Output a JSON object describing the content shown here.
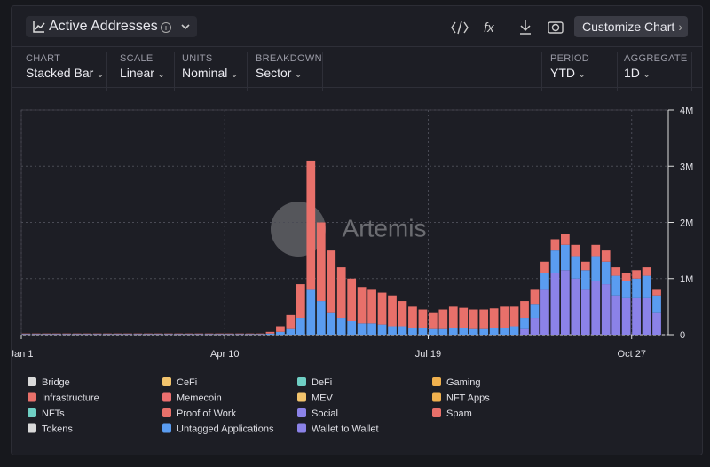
{
  "chart_data": {
    "type": "bar",
    "stacked": true,
    "title": "Active Addresses",
    "watermark": "Artemis",
    "categories": [
      "Jan 1",
      null,
      null,
      null,
      null,
      null,
      null,
      null,
      null,
      null,
      null,
      null,
      null,
      null,
      null,
      null,
      null,
      null,
      null,
      null,
      "Apr 10",
      null,
      null,
      null,
      null,
      null,
      null,
      null,
      null,
      null,
      null,
      null,
      null,
      null,
      null,
      null,
      null,
      null,
      null,
      null,
      "Jul 19",
      null,
      null,
      null,
      null,
      null,
      null,
      null,
      null,
      null,
      null,
      null,
      null,
      null,
      null,
      null,
      null,
      null,
      null,
      null,
      "Oct 27",
      null,
      null
    ],
    "ylim": [
      0,
      4
    ],
    "yticks": [
      0,
      {
        "value": 1,
        "label": "1M"
      },
      {
        "value": 2,
        "label": "2M"
      },
      {
        "value": 3,
        "label": "3M"
      },
      {
        "value": 4,
        "label": "4M"
      }
    ],
    "grid": true,
    "series": [
      {
        "name": "Bridge",
        "color": "#d9d9d9",
        "values": [
          0,
          0,
          0,
          0,
          0,
          0,
          0,
          0,
          0,
          0,
          0,
          0,
          0,
          0,
          0,
          0,
          0,
          0,
          0,
          0,
          0,
          0,
          0,
          0,
          0,
          0,
          0,
          0,
          0,
          0,
          0,
          0,
          0,
          0,
          0,
          0,
          0,
          0,
          0,
          0,
          0,
          0,
          0,
          0,
          0,
          0,
          0,
          0,
          0,
          0,
          0,
          0,
          0,
          0,
          0,
          0,
          0,
          0,
          0,
          0,
          0,
          0,
          0
        ]
      },
      {
        "name": "CeFi",
        "color": "#f2c46d",
        "values": [
          0,
          0,
          0,
          0,
          0,
          0,
          0,
          0,
          0,
          0,
          0,
          0,
          0,
          0,
          0,
          0,
          0,
          0,
          0,
          0,
          0,
          0,
          0,
          0,
          0,
          0,
          0,
          0,
          0,
          0,
          0,
          0,
          0,
          0,
          0,
          0,
          0,
          0,
          0,
          0,
          0,
          0,
          0,
          0,
          0,
          0,
          0,
          0,
          0,
          0,
          0,
          0,
          0,
          0,
          0,
          0,
          0,
          0,
          0,
          0,
          0,
          0,
          0
        ]
      },
      {
        "name": "DeFi",
        "color": "#6fcfc4",
        "values": [
          0,
          0,
          0,
          0,
          0,
          0,
          0,
          0,
          0,
          0,
          0,
          0,
          0,
          0,
          0,
          0,
          0,
          0,
          0,
          0,
          0,
          0,
          0,
          0,
          0,
          0,
          0,
          0,
          0,
          0,
          0,
          0,
          0,
          0,
          0,
          0,
          0,
          0,
          0,
          0,
          0,
          0,
          0,
          0,
          0,
          0,
          0,
          0,
          0,
          0,
          0,
          0,
          0,
          0,
          0,
          0,
          0,
          0,
          0,
          0,
          0,
          0,
          0
        ]
      },
      {
        "name": "Gaming",
        "color": "#f0b14e",
        "values": [
          0,
          0,
          0,
          0,
          0,
          0,
          0,
          0,
          0,
          0,
          0,
          0,
          0,
          0,
          0,
          0,
          0,
          0,
          0,
          0,
          0,
          0,
          0,
          0,
          0,
          0,
          0,
          0,
          0,
          0,
          0,
          0,
          0,
          0,
          0,
          0,
          0,
          0,
          0,
          0,
          0,
          0,
          0,
          0,
          0,
          0,
          0,
          0,
          0,
          0,
          0,
          0,
          0,
          0,
          0,
          0,
          0,
          0,
          0,
          0,
          0,
          0,
          0
        ]
      },
      {
        "name": "Infrastructure",
        "color": "#e8706a",
        "values": [
          0,
          0,
          0,
          0,
          0,
          0,
          0,
          0,
          0,
          0,
          0,
          0,
          0,
          0,
          0,
          0,
          0,
          0,
          0,
          0,
          0,
          0,
          0,
          0,
          0,
          0,
          0,
          0,
          0,
          0,
          0,
          0,
          0,
          0,
          0,
          0,
          0,
          0,
          0,
          0,
          0,
          0,
          0,
          0,
          0,
          0,
          0,
          0,
          0,
          0,
          0,
          0,
          0,
          0,
          0,
          0,
          0,
          0,
          0,
          0,
          0,
          0,
          0
        ]
      },
      {
        "name": "Memecoin",
        "color": "#ec6f6f",
        "values": [
          0,
          0,
          0,
          0,
          0,
          0,
          0,
          0,
          0,
          0,
          0,
          0,
          0,
          0,
          0,
          0,
          0,
          0,
          0,
          0,
          0,
          0,
          0,
          0,
          0,
          0,
          0,
          0,
          0,
          0,
          0,
          0,
          0,
          0,
          0,
          0,
          0,
          0,
          0,
          0,
          0,
          0,
          0,
          0,
          0,
          0,
          0,
          0,
          0,
          0,
          0,
          0,
          0,
          0,
          0,
          0,
          0,
          0,
          0,
          0,
          0,
          0,
          0
        ]
      },
      {
        "name": "MEV",
        "color": "#f2c46d",
        "values": [
          0,
          0,
          0,
          0,
          0,
          0,
          0,
          0,
          0,
          0,
          0,
          0,
          0,
          0,
          0,
          0,
          0,
          0,
          0,
          0,
          0,
          0,
          0,
          0,
          0,
          0,
          0,
          0,
          0,
          0,
          0,
          0,
          0,
          0,
          0,
          0,
          0,
          0,
          0,
          0,
          0,
          0,
          0,
          0,
          0,
          0,
          0,
          0,
          0,
          0,
          0,
          0,
          0,
          0,
          0,
          0,
          0,
          0,
          0,
          0,
          0,
          0,
          0
        ]
      },
      {
        "name": "NFT Apps",
        "color": "#f0b14e",
        "values": [
          0,
          0,
          0,
          0,
          0,
          0,
          0,
          0,
          0,
          0,
          0,
          0,
          0,
          0,
          0,
          0,
          0,
          0,
          0,
          0,
          0,
          0,
          0,
          0,
          0,
          0,
          0,
          0,
          0,
          0,
          0,
          0,
          0,
          0,
          0,
          0,
          0,
          0,
          0,
          0,
          0,
          0,
          0,
          0,
          0,
          0,
          0,
          0,
          0,
          0,
          0,
          0,
          0,
          0,
          0,
          0,
          0,
          0,
          0,
          0,
          0,
          0,
          0
        ]
      },
      {
        "name": "NFTs",
        "color": "#6fcfc4",
        "values": [
          0,
          0,
          0,
          0,
          0,
          0,
          0,
          0,
          0,
          0,
          0,
          0,
          0,
          0,
          0,
          0,
          0,
          0,
          0,
          0,
          0,
          0,
          0,
          0,
          0,
          0,
          0,
          0,
          0,
          0,
          0,
          0,
          0,
          0,
          0,
          0,
          0,
          0,
          0,
          0,
          0,
          0,
          0,
          0,
          0,
          0,
          0,
          0,
          0,
          0,
          0,
          0,
          0,
          0,
          0,
          0,
          0,
          0,
          0,
          0,
          0,
          0,
          0
        ]
      },
      {
        "name": "Proof of Work",
        "color": "#e8706a",
        "values": [
          0,
          0,
          0,
          0,
          0,
          0,
          0,
          0,
          0,
          0,
          0,
          0,
          0,
          0,
          0,
          0,
          0,
          0,
          0,
          0,
          0,
          0,
          0,
          0,
          0,
          0,
          0,
          0,
          0,
          0,
          0,
          0,
          0,
          0,
          0,
          0,
          0,
          0,
          0,
          0,
          0,
          0,
          0,
          0,
          0,
          0,
          0,
          0,
          0,
          0,
          0,
          0,
          0,
          0,
          0,
          0,
          0,
          0,
          0,
          0,
          0,
          0,
          0
        ]
      },
      {
        "name": "Social",
        "color": "#8b82e8",
        "values": [
          0,
          0,
          0,
          0,
          0,
          0,
          0,
          0,
          0,
          0,
          0,
          0,
          0,
          0,
          0,
          0,
          0,
          0,
          0,
          0,
          0,
          0,
          0,
          0,
          0,
          0,
          0,
          0,
          0,
          0,
          0,
          0,
          0,
          0,
          0,
          0,
          0,
          0,
          0,
          0,
          0,
          0,
          0,
          0,
          0,
          0,
          0,
          0,
          0,
          0,
          0,
          0,
          0,
          0,
          0,
          0,
          0,
          0,
          0,
          0,
          0,
          0,
          0
        ]
      },
      {
        "name": "Spam",
        "color": "#e8706a",
        "values": [
          0.01,
          0.01,
          0.01,
          0.01,
          0.01,
          0.01,
          0.01,
          0.01,
          0.01,
          0.01,
          0.01,
          0.01,
          0.01,
          0.01,
          0.01,
          0.01,
          0.01,
          0.01,
          0.01,
          0.01,
          0.01,
          0.01,
          0.01,
          0.01,
          0.03,
          0.1,
          0.25,
          0.6,
          2.3,
          1.4,
          1.1,
          0.9,
          0.75,
          0.65,
          0.6,
          0.57,
          0.55,
          0.45,
          0.38,
          0.33,
          0.3,
          0.35,
          0.38,
          0.36,
          0.35,
          0.35,
          0.35,
          0.38,
          0.35,
          0.3,
          0.25,
          0.2,
          0.2,
          0.2,
          0.2,
          0.15,
          0.2,
          0.2,
          0.15,
          0.15,
          0.15,
          0.15,
          0.1
        ]
      },
      {
        "name": "Tokens",
        "color": "#d9d9d9",
        "values": [
          0,
          0,
          0,
          0,
          0,
          0,
          0,
          0,
          0,
          0,
          0,
          0,
          0,
          0,
          0,
          0,
          0,
          0,
          0,
          0,
          0,
          0,
          0,
          0,
          0,
          0,
          0,
          0,
          0,
          0,
          0,
          0,
          0,
          0,
          0,
          0,
          0,
          0,
          0,
          0,
          0,
          0,
          0,
          0,
          0,
          0,
          0,
          0,
          0,
          0,
          0,
          0,
          0,
          0,
          0,
          0,
          0,
          0,
          0,
          0,
          0,
          0,
          0
        ]
      },
      {
        "name": "Untagged Applications",
        "color": "#5a9cf0",
        "values": [
          0.01,
          0.01,
          0.01,
          0.01,
          0.01,
          0.01,
          0.01,
          0.01,
          0.01,
          0.01,
          0.01,
          0.01,
          0.01,
          0.01,
          0.01,
          0.01,
          0.01,
          0.01,
          0.01,
          0.01,
          0.01,
          0.01,
          0.01,
          0.01,
          0.02,
          0.05,
          0.1,
          0.3,
          0.8,
          0.6,
          0.4,
          0.3,
          0.25,
          0.2,
          0.2,
          0.18,
          0.15,
          0.15,
          0.12,
          0.12,
          0.1,
          0.1,
          0.12,
          0.12,
          0.1,
          0.1,
          0.12,
          0.12,
          0.15,
          0.2,
          0.25,
          0.3,
          0.4,
          0.45,
          0.4,
          0.35,
          0.45,
          0.4,
          0.35,
          0.3,
          0.35,
          0.4,
          0.3
        ]
      },
      {
        "name": "Wallet to Wallet",
        "color": "#8b82e8",
        "values": [
          0,
          0,
          0,
          0,
          0,
          0,
          0,
          0,
          0,
          0,
          0,
          0,
          0,
          0,
          0,
          0,
          0,
          0,
          0,
          0,
          0,
          0,
          0,
          0,
          0,
          0,
          0,
          0,
          0,
          0,
          0,
          0,
          0,
          0,
          0,
          0,
          0,
          0,
          0,
          0,
          0,
          0,
          0,
          0,
          0,
          0,
          0,
          0,
          0,
          0.1,
          0.3,
          0.8,
          1.1,
          1.15,
          1,
          0.8,
          0.95,
          0.9,
          0.7,
          0.65,
          0.65,
          0.65,
          0.4
        ]
      }
    ]
  },
  "toolbar": {
    "controls": [
      {
        "label": "CHART",
        "value": "Stacked Bar"
      },
      {
        "label": "SCALE",
        "value": "Linear"
      },
      {
        "label": "UNITS",
        "value": "Nominal"
      },
      {
        "label": "BREAKDOWN",
        "value": "Sector"
      },
      {
        "label": "PERIOD",
        "value": "YTD"
      },
      {
        "label": "AGGREGATE",
        "value": "1D"
      }
    ],
    "button": "Customize Chart"
  }
}
